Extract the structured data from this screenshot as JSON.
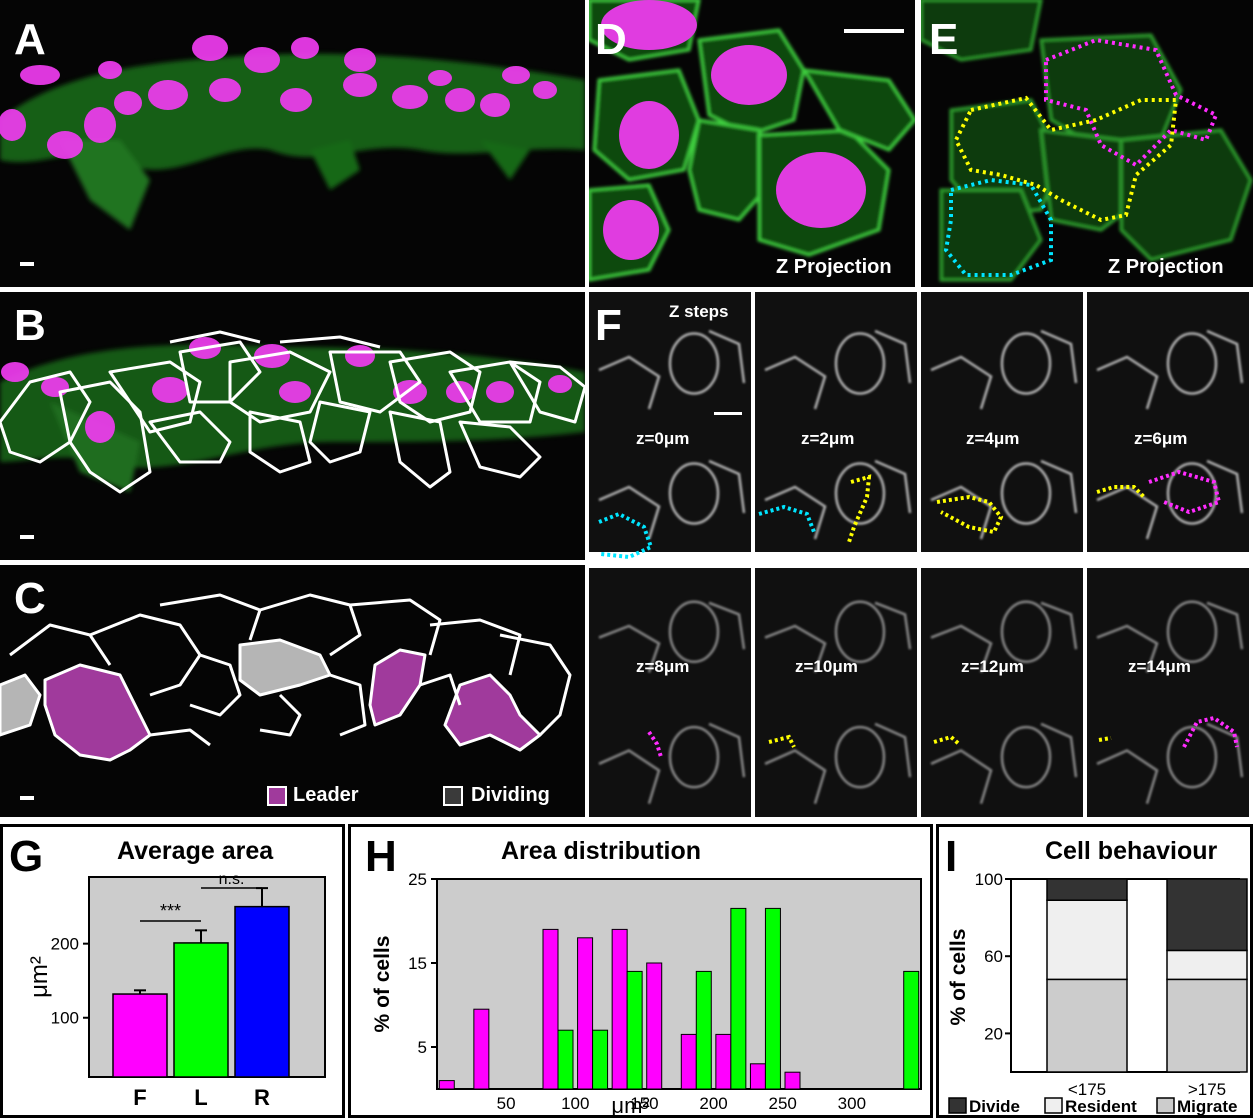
{
  "panels": {
    "A": {
      "letter": "A"
    },
    "B": {
      "letter": "B"
    },
    "C": {
      "letter": "C",
      "legend": [
        {
          "label": "Leader",
          "color": "#a03a9c"
        },
        {
          "label": "Dividing",
          "color": "#3a3a3a"
        }
      ]
    },
    "D": {
      "letter": "D",
      "caption": "Z Projection"
    },
    "E": {
      "letter": "E",
      "caption": "Z Projection"
    },
    "F": {
      "letter": "F",
      "heading": "Z steps",
      "z_labels": [
        "z=0μm",
        "z=2μm",
        "z=4μm",
        "z=6μm",
        "z=8μm",
        "z=10μm",
        "z=12μm",
        "z=14μm"
      ]
    },
    "G": {
      "letter": "G"
    },
    "H": {
      "letter": "H"
    },
    "I": {
      "letter": "I"
    }
  },
  "colors": {
    "magenta": "#ff00ff",
    "green": "#00ff00",
    "blue": "#0000ff",
    "plot_bg": "#cccccc",
    "cyan": "#00e5ff",
    "yellow": "#ffff00"
  },
  "chart_data": [
    {
      "id": "G",
      "type": "bar",
      "title": "Average area",
      "ylabel": "μm²",
      "categories": [
        "F",
        "L",
        "R"
      ],
      "values": [
        132,
        201,
        250
      ],
      "errors": [
        5,
        17,
        25
      ],
      "colors": [
        "#ff00ff",
        "#00ff00",
        "#0000ff"
      ],
      "ylim": [
        20,
        290
      ],
      "yticks": [
        100,
        200
      ],
      "annotations": [
        {
          "text": "***",
          "between": [
            "F",
            "L"
          ]
        },
        {
          "text": "n.s.",
          "between": [
            "L",
            "R"
          ]
        }
      ]
    },
    {
      "id": "H",
      "type": "bar",
      "title": "Area distribution",
      "xlabel": "μm²",
      "ylabel": "% of cells",
      "xticks": [
        50,
        100,
        150,
        200,
        250,
        300
      ],
      "yticks": [
        5,
        15,
        25
      ],
      "ylim": [
        0,
        25
      ],
      "xlim": [
        0,
        350
      ],
      "series": [
        {
          "color": "#ff00ff",
          "x": [
            12.5,
            37.5,
            87.5,
            112.5,
            137.5,
            162.5,
            187.5,
            212.5,
            237.5,
            262.5,
            287.5
          ],
          "values": [
            1,
            9.5,
            19,
            18,
            19,
            15,
            6.5,
            6.5,
            3,
            2,
            0
          ]
        },
        {
          "color": "#00ff00",
          "x": [
            87.5,
            112.5,
            137.5,
            187.5,
            212.5,
            237.5,
            262.5,
            337.5
          ],
          "values": [
            7,
            7,
            14,
            14,
            21.5,
            21.5,
            0,
            14
          ]
        }
      ]
    },
    {
      "id": "I",
      "type": "bar",
      "title": "Cell behaviour",
      "ylabel": "% of cells",
      "categories": [
        "<175",
        ">175"
      ],
      "yticks": [
        20,
        60,
        100
      ],
      "ylim": [
        0,
        100
      ],
      "stacked": true,
      "series": [
        {
          "name": "Migrate",
          "color": "#cccccc",
          "values": [
            48,
            48
          ]
        },
        {
          "name": "Resident",
          "color": "#efefef",
          "values": [
            41,
            15
          ]
        },
        {
          "name": "Divide",
          "color": "#333333",
          "values": [
            11,
            37
          ]
        }
      ]
    }
  ]
}
